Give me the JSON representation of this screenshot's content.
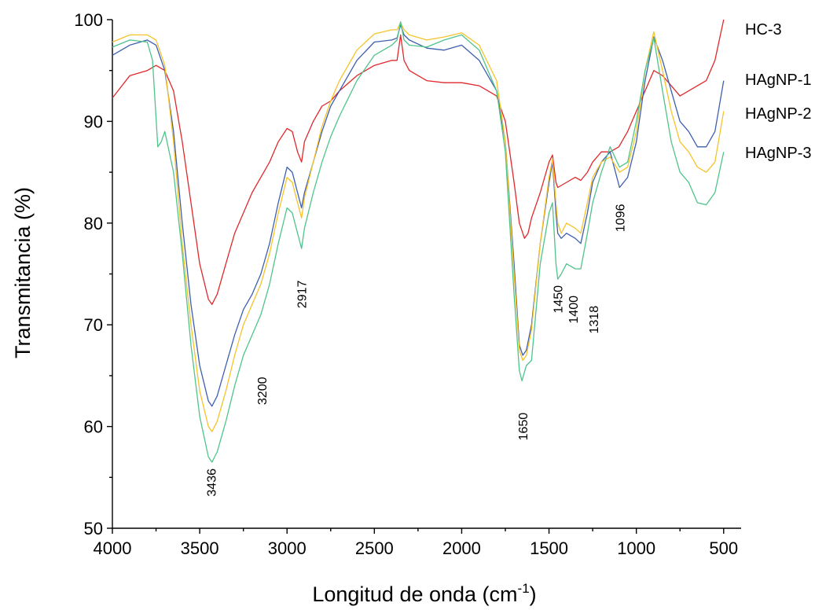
{
  "chart_data": {
    "type": "line",
    "title": "",
    "xlabel": "Longitud de onda (cm",
    "xlabel_sup": "-1",
    "xlabel_tail": ")",
    "ylabel": "Transmitancia (%)",
    "xlim": [
      4000,
      400
    ],
    "ylim": [
      50,
      100
    ],
    "x_reversed": true,
    "xticks": [
      4000,
      3500,
      3000,
      2500,
      2000,
      1500,
      1000,
      500
    ],
    "yticks": [
      50,
      60,
      70,
      80,
      90,
      100
    ],
    "grid": false,
    "legend_placement": "right",
    "series": [
      {
        "name": "HC-3",
        "color": "#e0282b",
        "points": [
          [
            4000,
            92.3
          ],
          [
            3900,
            94.5
          ],
          [
            3800,
            95
          ],
          [
            3750,
            95.5
          ],
          [
            3700,
            95
          ],
          [
            3650,
            93
          ],
          [
            3600,
            88
          ],
          [
            3550,
            82
          ],
          [
            3500,
            76
          ],
          [
            3450,
            72.5
          ],
          [
            3430,
            72
          ],
          [
            3400,
            73
          ],
          [
            3350,
            76
          ],
          [
            3300,
            79
          ],
          [
            3250,
            81
          ],
          [
            3200,
            83
          ],
          [
            3150,
            84.5
          ],
          [
            3100,
            86
          ],
          [
            3050,
            88
          ],
          [
            3000,
            89.3
          ],
          [
            2970,
            89
          ],
          [
            2940,
            87
          ],
          [
            2917,
            86
          ],
          [
            2900,
            88
          ],
          [
            2850,
            90
          ],
          [
            2800,
            91.5
          ],
          [
            2750,
            92
          ],
          [
            2700,
            93
          ],
          [
            2600,
            94.5
          ],
          [
            2500,
            95.5
          ],
          [
            2400,
            96
          ],
          [
            2370,
            96
          ],
          [
            2350,
            98.5
          ],
          [
            2330,
            96
          ],
          [
            2300,
            95
          ],
          [
            2200,
            94
          ],
          [
            2100,
            93.8
          ],
          [
            2000,
            93.8
          ],
          [
            1900,
            93.5
          ],
          [
            1800,
            92.5
          ],
          [
            1750,
            90
          ],
          [
            1700,
            84
          ],
          [
            1670,
            80
          ],
          [
            1640,
            78.5
          ],
          [
            1620,
            79
          ],
          [
            1600,
            80.5
          ],
          [
            1550,
            83
          ],
          [
            1500,
            86
          ],
          [
            1480,
            86.7
          ],
          [
            1460,
            84
          ],
          [
            1450,
            83.5
          ],
          [
            1400,
            84
          ],
          [
            1350,
            84.5
          ],
          [
            1318,
            84.2
          ],
          [
            1280,
            85
          ],
          [
            1250,
            86
          ],
          [
            1200,
            87
          ],
          [
            1150,
            87
          ],
          [
            1100,
            87.5
          ],
          [
            1050,
            89
          ],
          [
            1000,
            91
          ],
          [
            950,
            93
          ],
          [
            900,
            95
          ],
          [
            850,
            94.5
          ],
          [
            800,
            93.5
          ],
          [
            750,
            92.5
          ],
          [
            700,
            93
          ],
          [
            650,
            93.5
          ],
          [
            600,
            94
          ],
          [
            550,
            96
          ],
          [
            500,
            100
          ]
        ]
      },
      {
        "name": "HAgNP-1",
        "color": "#3e5fae",
        "points": [
          [
            4000,
            96.5
          ],
          [
            3900,
            97.5
          ],
          [
            3800,
            98
          ],
          [
            3750,
            97.5
          ],
          [
            3700,
            95
          ],
          [
            3650,
            89
          ],
          [
            3600,
            80
          ],
          [
            3550,
            72
          ],
          [
            3500,
            66
          ],
          [
            3450,
            62.5
          ],
          [
            3430,
            62
          ],
          [
            3400,
            63
          ],
          [
            3350,
            66
          ],
          [
            3300,
            69
          ],
          [
            3250,
            71.5
          ],
          [
            3200,
            73
          ],
          [
            3150,
            75
          ],
          [
            3100,
            78
          ],
          [
            3050,
            82
          ],
          [
            3000,
            85.5
          ],
          [
            2970,
            85
          ],
          [
            2940,
            83
          ],
          [
            2917,
            81.5
          ],
          [
            2900,
            83
          ],
          [
            2850,
            86
          ],
          [
            2800,
            89
          ],
          [
            2750,
            91.5
          ],
          [
            2700,
            93
          ],
          [
            2600,
            96
          ],
          [
            2500,
            97.8
          ],
          [
            2400,
            98
          ],
          [
            2370,
            98.2
          ],
          [
            2350,
            99.5
          ],
          [
            2330,
            98.5
          ],
          [
            2300,
            98
          ],
          [
            2200,
            97.2
          ],
          [
            2100,
            97
          ],
          [
            2000,
            97.5
          ],
          [
            1900,
            96
          ],
          [
            1800,
            93
          ],
          [
            1750,
            88
          ],
          [
            1700,
            76
          ],
          [
            1670,
            68
          ],
          [
            1650,
            67
          ],
          [
            1630,
            67.5
          ],
          [
            1600,
            70
          ],
          [
            1550,
            78
          ],
          [
            1500,
            84
          ],
          [
            1480,
            86
          ],
          [
            1460,
            81
          ],
          [
            1450,
            79
          ],
          [
            1430,
            78.5
          ],
          [
            1400,
            79
          ],
          [
            1350,
            78.5
          ],
          [
            1318,
            78
          ],
          [
            1280,
            81
          ],
          [
            1250,
            84
          ],
          [
            1200,
            86
          ],
          [
            1150,
            87
          ],
          [
            1096,
            83.5
          ],
          [
            1050,
            84.5
          ],
          [
            1000,
            88
          ],
          [
            950,
            94
          ],
          [
            900,
            98.3
          ],
          [
            850,
            96
          ],
          [
            800,
            93
          ],
          [
            750,
            90
          ],
          [
            700,
            89
          ],
          [
            650,
            87.5
          ],
          [
            600,
            87.5
          ],
          [
            550,
            89
          ],
          [
            500,
            94
          ]
        ]
      },
      {
        "name": "HAgNP-2",
        "color": "#f5c32a",
        "points": [
          [
            4000,
            97.8
          ],
          [
            3900,
            98.5
          ],
          [
            3800,
            98.5
          ],
          [
            3750,
            98
          ],
          [
            3700,
            95.5
          ],
          [
            3650,
            88
          ],
          [
            3600,
            78
          ],
          [
            3550,
            70
          ],
          [
            3500,
            63.5
          ],
          [
            3450,
            60
          ],
          [
            3430,
            59.5
          ],
          [
            3400,
            60.5
          ],
          [
            3350,
            63.5
          ],
          [
            3300,
            67
          ],
          [
            3250,
            70
          ],
          [
            3200,
            72
          ],
          [
            3150,
            74
          ],
          [
            3100,
            77
          ],
          [
            3050,
            81
          ],
          [
            3000,
            84.5
          ],
          [
            2970,
            84
          ],
          [
            2940,
            82
          ],
          [
            2917,
            80.5
          ],
          [
            2900,
            82.5
          ],
          [
            2850,
            86
          ],
          [
            2800,
            89.5
          ],
          [
            2750,
            92
          ],
          [
            2700,
            94
          ],
          [
            2600,
            97
          ],
          [
            2500,
            98.6
          ],
          [
            2400,
            99
          ],
          [
            2370,
            99
          ],
          [
            2350,
            99.7
          ],
          [
            2330,
            99
          ],
          [
            2300,
            98.5
          ],
          [
            2200,
            98
          ],
          [
            2100,
            98.3
          ],
          [
            2000,
            98.7
          ],
          [
            1900,
            97.5
          ],
          [
            1800,
            94
          ],
          [
            1750,
            88
          ],
          [
            1700,
            75
          ],
          [
            1670,
            67.5
          ],
          [
            1650,
            66.5
          ],
          [
            1630,
            67
          ],
          [
            1600,
            69.5
          ],
          [
            1550,
            78
          ],
          [
            1500,
            84.5
          ],
          [
            1480,
            86.3
          ],
          [
            1460,
            82
          ],
          [
            1450,
            80
          ],
          [
            1430,
            79
          ],
          [
            1400,
            80
          ],
          [
            1350,
            79.5
          ],
          [
            1318,
            79
          ],
          [
            1280,
            82
          ],
          [
            1250,
            84.5
          ],
          [
            1200,
            86
          ],
          [
            1150,
            86.5
          ],
          [
            1096,
            85
          ],
          [
            1050,
            85.5
          ],
          [
            1000,
            89
          ],
          [
            950,
            95
          ],
          [
            900,
            98.8
          ],
          [
            850,
            95
          ],
          [
            800,
            91
          ],
          [
            750,
            88
          ],
          [
            700,
            87
          ],
          [
            650,
            85.5
          ],
          [
            600,
            85
          ],
          [
            550,
            86
          ],
          [
            500,
            91
          ]
        ]
      },
      {
        "name": "HAgNP-3",
        "color": "#4fc48a",
        "points": [
          [
            4000,
            97.3
          ],
          [
            3900,
            98
          ],
          [
            3800,
            97.8
          ],
          [
            3770,
            96
          ],
          [
            3740,
            87.5
          ],
          [
            3720,
            88
          ],
          [
            3700,
            89
          ],
          [
            3650,
            85
          ],
          [
            3600,
            77
          ],
          [
            3550,
            68
          ],
          [
            3500,
            61
          ],
          [
            3450,
            57
          ],
          [
            3430,
            56.5
          ],
          [
            3400,
            57.5
          ],
          [
            3350,
            60.5
          ],
          [
            3300,
            64
          ],
          [
            3250,
            67
          ],
          [
            3200,
            69
          ],
          [
            3150,
            71
          ],
          [
            3100,
            74
          ],
          [
            3050,
            78
          ],
          [
            3000,
            81.5
          ],
          [
            2970,
            81
          ],
          [
            2940,
            79
          ],
          [
            2917,
            77.5
          ],
          [
            2900,
            79.5
          ],
          [
            2850,
            83
          ],
          [
            2800,
            86
          ],
          [
            2750,
            88.5
          ],
          [
            2700,
            90.5
          ],
          [
            2600,
            94
          ],
          [
            2500,
            96.5
          ],
          [
            2400,
            97.5
          ],
          [
            2370,
            98
          ],
          [
            2350,
            99.8
          ],
          [
            2330,
            98
          ],
          [
            2300,
            97.5
          ],
          [
            2200,
            97.3
          ],
          [
            2100,
            98
          ],
          [
            2000,
            98.5
          ],
          [
            1900,
            97
          ],
          [
            1800,
            93
          ],
          [
            1750,
            87
          ],
          [
            1700,
            73
          ],
          [
            1670,
            65.5
          ],
          [
            1655,
            64.5
          ],
          [
            1630,
            66
          ],
          [
            1600,
            66.5
          ],
          [
            1550,
            76
          ],
          [
            1500,
            81
          ],
          [
            1480,
            82
          ],
          [
            1460,
            76
          ],
          [
            1450,
            74.5
          ],
          [
            1430,
            75
          ],
          [
            1400,
            76
          ],
          [
            1350,
            75.5
          ],
          [
            1318,
            75.5
          ],
          [
            1280,
            79
          ],
          [
            1250,
            82
          ],
          [
            1200,
            85
          ],
          [
            1150,
            87.5
          ],
          [
            1096,
            85.5
          ],
          [
            1050,
            86
          ],
          [
            1000,
            90
          ],
          [
            950,
            95
          ],
          [
            900,
            98.2
          ],
          [
            850,
            93
          ],
          [
            800,
            88
          ],
          [
            750,
            85
          ],
          [
            700,
            84
          ],
          [
            650,
            82
          ],
          [
            600,
            81.8
          ],
          [
            550,
            83
          ],
          [
            500,
            87
          ]
        ]
      }
    ],
    "annotations": [
      {
        "text": "3436",
        "x": 3436,
        "y": 54.5
      },
      {
        "text": "3200",
        "x": 3200,
        "y": 63.5
      },
      {
        "text": "2917",
        "x": 2917,
        "y": 73
      },
      {
        "text": "1650",
        "x": 1650,
        "y": 60
      },
      {
        "text": "1450",
        "x": 1450,
        "y": 72.5
      },
      {
        "text": "1400",
        "x": 1400,
        "y": 71.5
      },
      {
        "text": "1318",
        "x": 1318,
        "y": 70.5
      },
      {
        "text": "1096",
        "x": 1096,
        "y": 80.5
      }
    ]
  }
}
